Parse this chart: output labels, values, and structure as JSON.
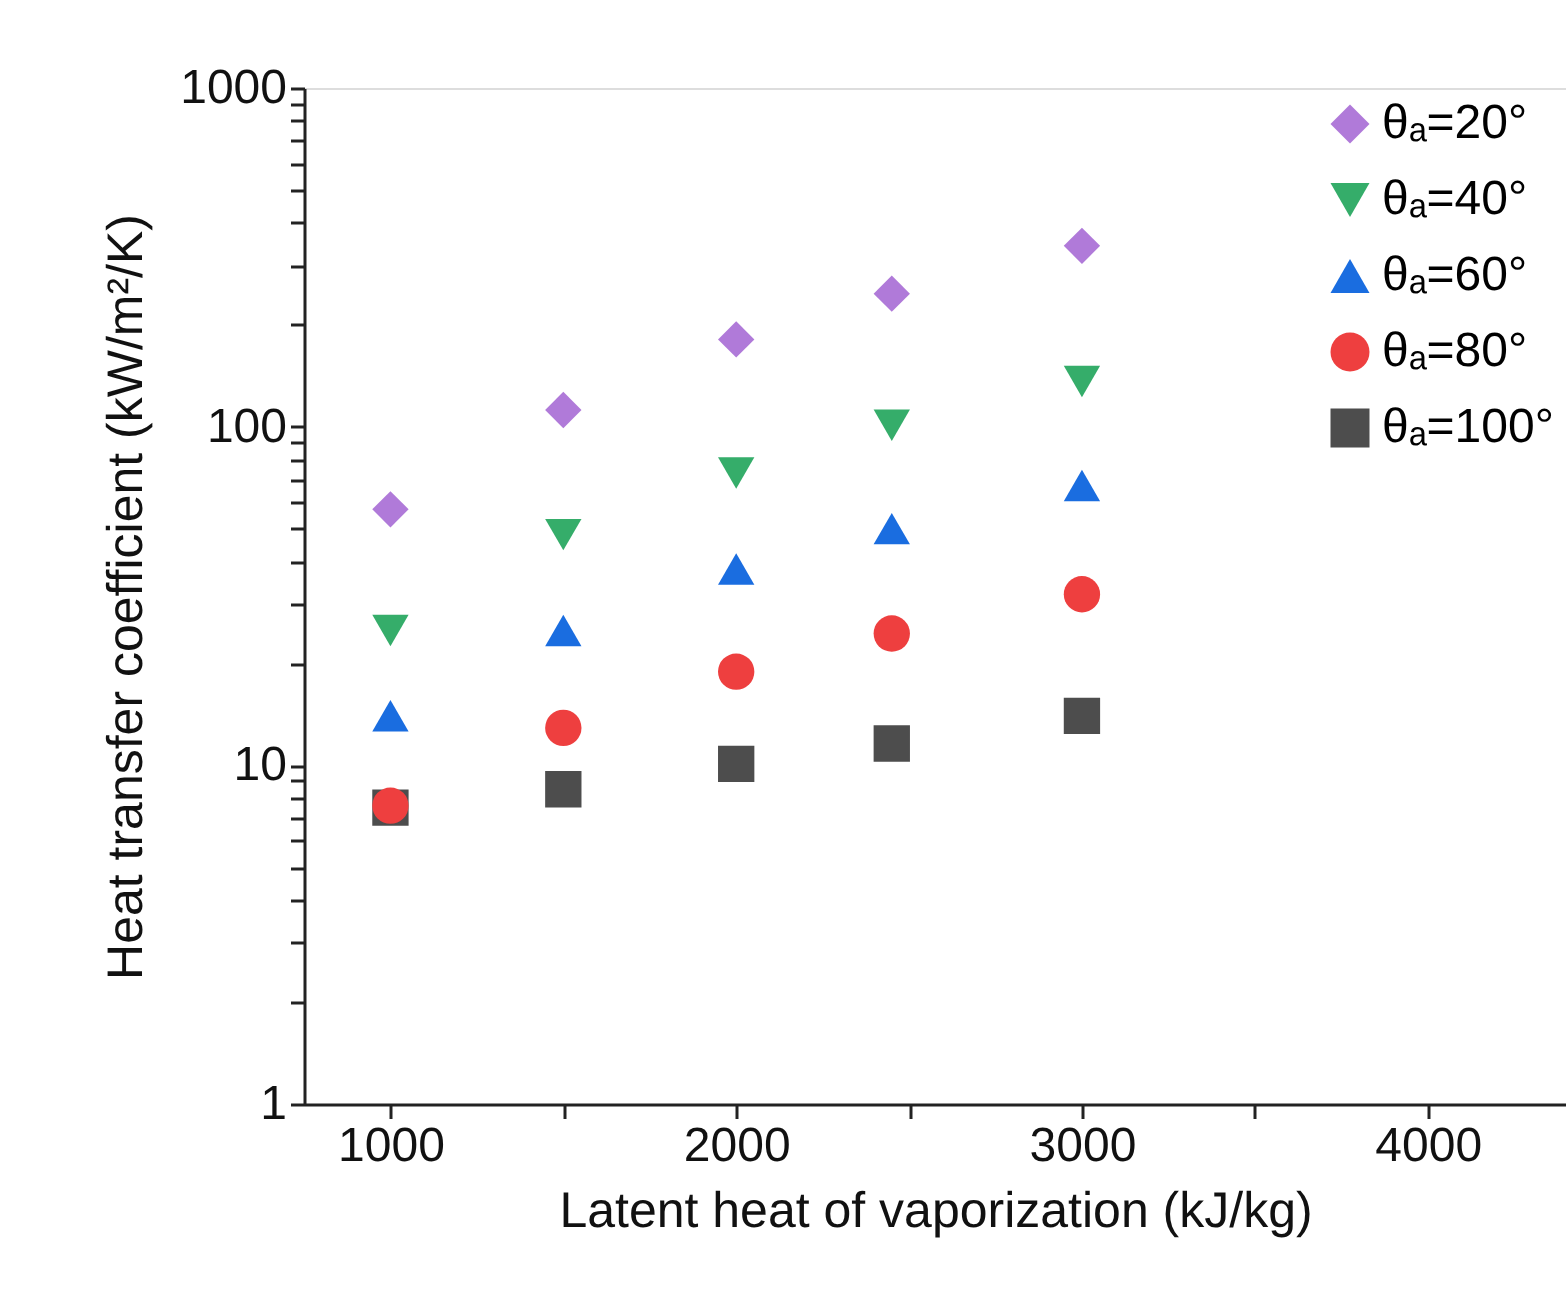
{
  "chart_data": {
    "type": "scatter",
    "xlabel": "Latent heat of vaporization (kJ/kg)",
    "ylabel": "Heat transfer coefficient (kW/m²/K)",
    "x": [
      1000,
      1500,
      2000,
      2450,
      3000
    ],
    "series": [
      {
        "name": "θₐ=20°",
        "color": "#b07ad9",
        "marker": "diamond",
        "values": [
          57,
          112,
          181,
          247,
          342
        ]
      },
      {
        "name": "θₐ=40°",
        "color": "#35ad6a",
        "marker": "triangle-down",
        "values": [
          25,
          48,
          73,
          101,
          136
        ]
      },
      {
        "name": "θₐ=60°",
        "color": "#1a6de0",
        "marker": "triangle-up",
        "values": [
          14,
          25,
          38,
          50,
          67
        ]
      },
      {
        "name": "θₐ=80°",
        "color": "#ee3f3f",
        "marker": "circle",
        "values": [
          7.6,
          12.9,
          18.9,
          24.5,
          32
        ]
      },
      {
        "name": "θₐ=100°",
        "color": "#4d4d4d",
        "marker": "square",
        "values": [
          7.5,
          8.5,
          10.1,
          11.6,
          14
        ]
      }
    ],
    "log": "y",
    "xlim": [
      750,
      4400
    ],
    "xticks": [
      1000,
      {
        "value": 1500,
        "label": null
      },
      2000,
      {
        "value": 2500,
        "label": null
      },
      3000,
      {
        "value": 3500,
        "label": null
      },
      4000
    ],
    "ylim": [
      1,
      1000
    ],
    "yticks": [
      1,
      {
        "value": 2,
        "label": null
      },
      {
        "value": 3,
        "label": null
      },
      {
        "value": 4,
        "label": null
      },
      {
        "value": 5,
        "label": null
      },
      {
        "value": 6,
        "label": null
      },
      {
        "value": 7,
        "label": null
      },
      {
        "value": 8,
        "label": null
      },
      {
        "value": 9,
        "label": null
      },
      10,
      {
        "value": 20,
        "label": null
      },
      {
        "value": 30,
        "label": null
      },
      {
        "value": 40,
        "label": null
      },
      {
        "value": 50,
        "label": null
      },
      {
        "value": 60,
        "label": null
      },
      {
        "value": 70,
        "label": null
      },
      {
        "value": 80,
        "label": null
      },
      {
        "value": 90,
        "label": null
      },
      100,
      {
        "value": 200,
        "label": null
      },
      {
        "value": 300,
        "label": null
      },
      {
        "value": 400,
        "label": null
      },
      {
        "value": 500,
        "label": null
      },
      {
        "value": 600,
        "label": null
      },
      {
        "value": 700,
        "label": null
      },
      {
        "value": 800,
        "label": null
      },
      {
        "value": 900,
        "label": null
      },
      1000
    ],
    "grid": false,
    "legend": "top right"
  }
}
